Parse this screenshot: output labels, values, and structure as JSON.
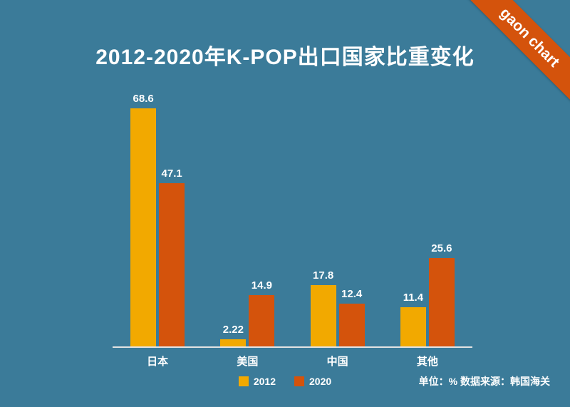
{
  "ribbon": {
    "label": "gaon chart"
  },
  "title": "2012-2020年K-POP出口国家比重变化",
  "source_note": "单位：% 数据来源：韩国海关",
  "legend": [
    {
      "label": "2012",
      "color": "#F2A900"
    },
    {
      "label": "2020",
      "color": "#D4530C"
    }
  ],
  "colors": {
    "background": "#3B7B99",
    "series_2012": "#F2A900",
    "series_2020": "#D4530C",
    "ribbon": "#D4530C",
    "axis_line": "#E3E3E3",
    "text": "#FFFFFF"
  },
  "chart_data": {
    "type": "bar",
    "title": "2012-2020年K-POP出口国家比重变化",
    "categories": [
      "日本",
      "美国",
      "中国",
      "其他"
    ],
    "series": [
      {
        "name": "2012",
        "color": "#F2A900",
        "values": [
          68.6,
          2.22,
          17.8,
          11.4
        ]
      },
      {
        "name": "2020",
        "color": "#D4530C",
        "values": [
          47.1,
          14.9,
          12.4,
          25.6
        ]
      }
    ],
    "xlabel": "",
    "ylabel": "%",
    "ylim": [
      0,
      70
    ],
    "grid": false,
    "value_labels": true,
    "legend_position": "bottom"
  }
}
